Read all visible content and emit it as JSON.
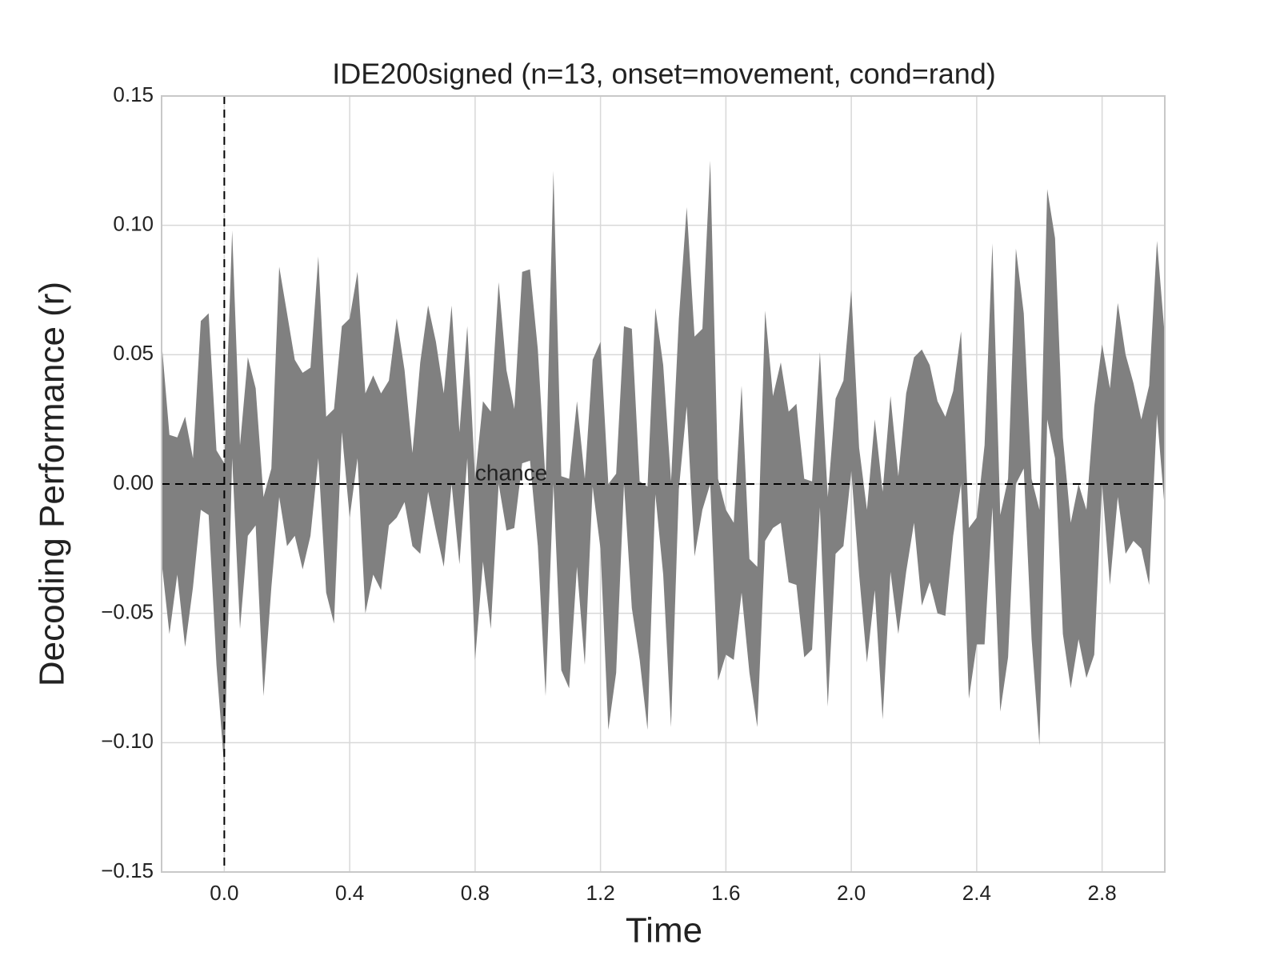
{
  "chart_data": {
    "type": "area",
    "title": "IDE200signed (n=13, onset=movement, cond=rand)",
    "xlabel": "Time",
    "ylabel": "Decoding Performance (r)",
    "color": "#808080",
    "grid": true,
    "xlim": [
      -0.2,
      3.0
    ],
    "ylim": [
      -0.15,
      0.15
    ],
    "xticks": [
      {
        "value": 0,
        "label": "0.0"
      },
      0.4,
      0.8,
      1.2,
      1.6,
      {
        "value": 2,
        "label": "2.0"
      },
      2.4,
      2.8
    ],
    "yticks": [
      {
        "value": -0.15,
        "label": "−0.15"
      },
      {
        "value": -0.1,
        "label": "−0.10"
      },
      {
        "value": -0.05,
        "label": "−0.05"
      },
      {
        "value": 0,
        "label": "0.00"
      },
      0.05,
      {
        "value": 0.1,
        "label": "0.10"
      },
      0.15
    ],
    "vline": 0,
    "hline": 0,
    "annotation": {
      "text": "chance",
      "x": 0.8,
      "y": 0
    },
    "x": [
      -0.2,
      -0.175,
      -0.15,
      -0.125,
      -0.1,
      -0.075,
      -0.05,
      -0.025,
      0,
      0.025,
      0.05,
      0.075,
      0.1,
      0.125,
      0.15,
      0.175,
      0.2,
      0.225,
      0.25,
      0.275,
      0.3,
      0.325,
      0.35,
      0.375,
      0.4,
      0.425,
      0.45,
      0.475,
      0.5,
      0.525,
      0.55,
      0.575,
      0.6,
      0.625,
      0.65,
      0.675,
      0.7,
      0.725,
      0.75,
      0.775,
      0.8,
      0.825,
      0.85,
      0.875,
      0.9,
      0.925,
      0.95,
      0.975,
      1,
      1.025,
      1.05,
      1.075,
      1.1,
      1.125,
      1.15,
      1.175,
      1.2,
      1.225,
      1.25,
      1.275,
      1.3,
      1.325,
      1.35,
      1.375,
      1.4,
      1.425,
      1.45,
      1.475,
      1.5,
      1.525,
      1.55,
      1.575,
      1.6,
      1.625,
      1.65,
      1.675,
      1.7,
      1.725,
      1.75,
      1.775,
      1.8,
      1.825,
      1.85,
      1.875,
      1.9,
      1.925,
      1.95,
      1.975,
      2,
      2.025,
      2.05,
      2.075,
      2.1,
      2.125,
      2.15,
      2.175,
      2.2,
      2.225,
      2.25,
      2.275,
      2.3,
      2.325,
      2.35,
      2.375,
      2.4,
      2.425,
      2.45,
      2.475,
      2.5,
      2.525,
      2.55,
      2.575,
      2.6,
      2.625,
      2.65,
      2.675,
      2.7,
      2.725,
      2.75,
      2.775,
      2.8,
      2.825,
      2.85,
      2.875,
      2.9,
      2.925,
      2.95,
      2.975,
      3
    ],
    "upper": [
      0.055,
      0.019,
      0.018,
      0.026,
      0.01,
      0.063,
      0.066,
      0.013,
      0.008,
      0.098,
      0.015,
      0.049,
      0.037,
      -0.005,
      0.006,
      0.084,
      0.066,
      0.048,
      0.043,
      0.045,
      0.088,
      0.026,
      0.029,
      0.061,
      0.064,
      0.082,
      0.035,
      0.042,
      0.035,
      0.04,
      0.064,
      0.044,
      0.012,
      0.047,
      0.069,
      0.055,
      0.035,
      0.069,
      0.02,
      0.061,
      0.002,
      0.032,
      0.028,
      0.078,
      0.044,
      0.029,
      0.082,
      0.083,
      0.052,
      0.001,
      0.121,
      0.003,
      0.002,
      0.032,
      0.002,
      0.048,
      0.055,
      0,
      0.004,
      0.061,
      0.06,
      0.001,
      -0.001,
      0.068,
      0.046,
      0.001,
      0.064,
      0.107,
      0.057,
      0.06,
      0.125,
      0.002,
      -0.01,
      -0.015,
      0.038,
      -0.029,
      -0.032,
      0.067,
      0.034,
      0.047,
      0.028,
      0.031,
      0.002,
      0.001,
      0.051,
      -0.005,
      0.033,
      0.04,
      0.075,
      0.014,
      -0.01,
      0.025,
      -0.003,
      0.034,
      0.003,
      0.035,
      0.049,
      0.052,
      0.046,
      0.032,
      0.026,
      0.036,
      0.059,
      -0.017,
      -0.013,
      0.015,
      0.093,
      -0.012,
      0.002,
      0.091,
      0.066,
      0.002,
      -0.01,
      0.114,
      0.095,
      0.018,
      -0.015,
      0,
      -0.01,
      0.03,
      0.054,
      0.037,
      0.07,
      0.05,
      0.039,
      0.025,
      0.038,
      0.094,
      0.057
    ],
    "lower": [
      -0.03,
      -0.058,
      -0.035,
      -0.063,
      -0.04,
      -0.01,
      -0.012,
      -0.07,
      -0.11,
      0.01,
      -0.056,
      -0.02,
      -0.016,
      -0.082,
      -0.04,
      -0.005,
      -0.024,
      -0.02,
      -0.033,
      -0.02,
      0.01,
      -0.042,
      -0.054,
      0.02,
      -0.013,
      0.01,
      -0.05,
      -0.035,
      -0.041,
      -0.016,
      -0.013,
      -0.007,
      -0.024,
      -0.027,
      -0.003,
      -0.018,
      -0.032,
      0,
      -0.031,
      0.01,
      -0.068,
      -0.03,
      -0.056,
      0,
      -0.018,
      -0.017,
      0.008,
      0.009,
      -0.024,
      -0.082,
      0,
      -0.072,
      -0.079,
      -0.032,
      -0.07,
      -0.001,
      -0.025,
      -0.095,
      -0.073,
      0,
      -0.048,
      -0.068,
      -0.095,
      -0.004,
      -0.035,
      -0.094,
      -0.002,
      0.03,
      -0.028,
      -0.01,
      0,
      -0.076,
      -0.066,
      -0.068,
      -0.042,
      -0.073,
      -0.094,
      -0.022,
      -0.017,
      -0.015,
      -0.038,
      -0.039,
      -0.067,
      -0.064,
      -0.009,
      -0.086,
      -0.027,
      -0.024,
      0.005,
      -0.035,
      -0.069,
      -0.041,
      -0.091,
      -0.034,
      -0.058,
      -0.034,
      -0.015,
      -0.047,
      -0.038,
      -0.05,
      -0.051,
      -0.02,
      0,
      -0.083,
      -0.062,
      -0.062,
      -0.009,
      -0.088,
      -0.067,
      0,
      0.006,
      -0.06,
      -0.101,
      0.025,
      0.01,
      -0.058,
      -0.079,
      -0.06,
      -0.075,
      -0.066,
      0,
      -0.039,
      -0.005,
      -0.027,
      -0.022,
      -0.025,
      -0.039,
      0.027,
      -0.01
    ]
  }
}
